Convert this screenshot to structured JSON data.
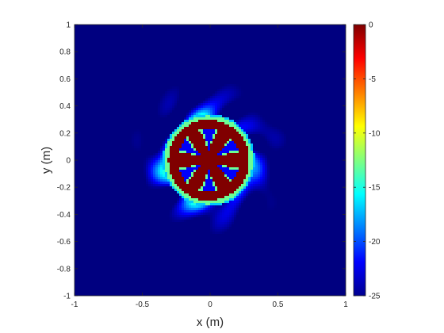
{
  "chart_data": {
    "type": "heatmap",
    "title": "",
    "xlabel": "x (m)",
    "ylabel": "y (m)",
    "xlim": [
      -1,
      1
    ],
    "ylim": [
      -1,
      1
    ],
    "x_ticks": [
      -1,
      -0.5,
      0,
      0.5,
      1
    ],
    "x_tick_labels": [
      "-1",
      "-0.5",
      "0",
      "0.5",
      "1"
    ],
    "y_ticks": [
      1,
      0.8,
      0.6,
      0.4,
      0.2,
      0,
      -0.2,
      -0.4,
      -0.6,
      -0.8,
      -1
    ],
    "y_tick_labels": [
      "1",
      "0.8",
      "0.6",
      "0.4",
      "0.2",
      "0",
      "-0.2",
      "-0.4",
      "-0.6",
      "-0.8",
      "-1"
    ],
    "colorbar": {
      "colormap": "jet",
      "limits": [
        -25,
        0
      ],
      "ticks": [
        0,
        -5,
        -10,
        -15,
        -20,
        -25
      ],
      "tick_labels": [
        "0",
        "-5",
        "-10",
        "-15",
        "-20",
        "-25"
      ]
    },
    "background_value": -25,
    "features": {
      "disc": {
        "center_x": -0.01,
        "center_y": 0.0,
        "radius": 0.31,
        "value": 0
      },
      "disc_rim_value": -13,
      "side_lobe_band": {
        "inner_radius": 0.3,
        "outer_radius": 0.7,
        "value_range": [
          -25,
          -15
        ]
      },
      "spoke_holes": {
        "count": 6,
        "angles_deg": [
          30,
          90,
          150,
          210,
          270,
          330
        ],
        "inner_radius": 0.07,
        "outer_radius": 0.23,
        "value": -22
      }
    },
    "grid": false,
    "legend": "none"
  }
}
